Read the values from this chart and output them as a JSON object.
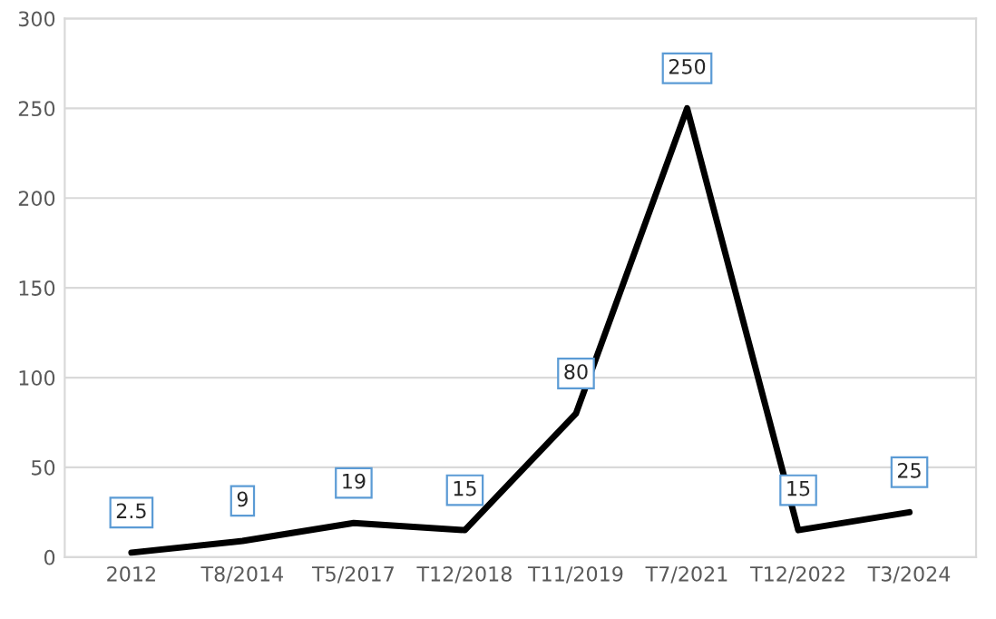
{
  "chart_data": {
    "type": "line",
    "categories": [
      "2012",
      "T8/2014",
      "T5/2017",
      "T12/2018",
      "T11/2019",
      "T7/2021",
      "T12/2022",
      "T3/2024"
    ],
    "series": [
      {
        "color": "#000000",
        "values": [
          2.5,
          9,
          19,
          15,
          80,
          250,
          15,
          25
        ]
      }
    ],
    "ylim": [
      0,
      300
    ],
    "yticks": [
      0,
      50,
      100,
      150,
      200,
      250,
      300
    ],
    "grid": "y",
    "data_labels": true,
    "marker": "none",
    "line_style": "solid",
    "legend": false
  }
}
